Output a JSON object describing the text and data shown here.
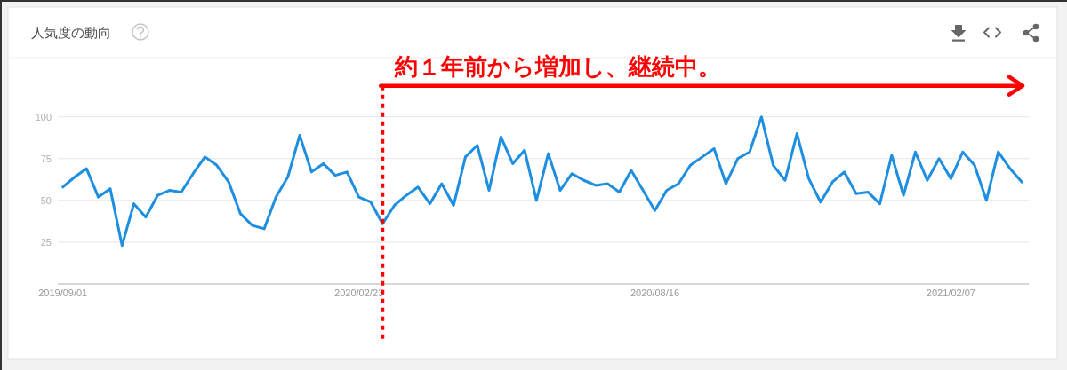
{
  "chart_data": {
    "type": "line",
    "title": "人気度の動向",
    "x": [
      "2019-09-01",
      "2019-09-08",
      "2019-09-15",
      "2019-09-22",
      "2019-09-29",
      "2019-10-06",
      "2019-10-13",
      "2019-10-20",
      "2019-10-27",
      "2019-11-03",
      "2019-11-10",
      "2019-11-17",
      "2019-11-24",
      "2019-12-01",
      "2019-12-08",
      "2019-12-15",
      "2019-12-22",
      "2019-12-29",
      "2020-01-05",
      "2020-01-12",
      "2020-01-19",
      "2020-01-26",
      "2020-02-02",
      "2020-02-09",
      "2020-02-16",
      "2020-02-23",
      "2020-03-01",
      "2020-03-08",
      "2020-03-15",
      "2020-03-22",
      "2020-03-29",
      "2020-04-05",
      "2020-04-12",
      "2020-04-19",
      "2020-04-26",
      "2020-05-03",
      "2020-05-10",
      "2020-05-17",
      "2020-05-24",
      "2020-05-31",
      "2020-06-07",
      "2020-06-14",
      "2020-06-21",
      "2020-06-28",
      "2020-07-05",
      "2020-07-12",
      "2020-07-19",
      "2020-07-26",
      "2020-08-02",
      "2020-08-09",
      "2020-08-16",
      "2020-08-23",
      "2020-08-30",
      "2020-09-06",
      "2020-09-13",
      "2020-09-20",
      "2020-09-27",
      "2020-10-04",
      "2020-10-11",
      "2020-10-18",
      "2020-10-25",
      "2020-11-01",
      "2020-11-08",
      "2020-11-15",
      "2020-11-22",
      "2020-11-29",
      "2020-12-06",
      "2020-12-13",
      "2020-12-20",
      "2020-12-27",
      "2021-01-03",
      "2021-01-10",
      "2021-01-17",
      "2021-01-24",
      "2021-01-31",
      "2021-02-07",
      "2021-02-14",
      "2021-02-21",
      "2021-02-28",
      "2021-03-07",
      "2021-03-14",
      "2021-03-21"
    ],
    "series": [
      {
        "color": "#1e8fe0",
        "values": [
          58,
          64,
          69,
          52,
          57,
          23,
          48,
          40,
          53,
          56,
          55,
          66,
          76,
          71,
          61,
          42,
          35,
          33,
          52,
          64,
          89,
          67,
          72,
          65,
          67,
          52,
          49,
          36,
          47,
          53,
          58,
          48,
          60,
          47,
          76,
          83,
          56,
          88,
          72,
          80,
          50,
          78,
          56,
          66,
          62,
          59,
          60,
          55,
          68,
          56,
          44,
          56,
          60,
          71,
          76,
          81,
          60,
          75,
          79,
          100,
          71,
          62,
          90,
          63,
          49,
          61,
          67,
          54,
          55,
          48,
          77,
          53,
          79,
          62,
          75,
          63,
          79,
          71,
          50,
          79,
          69,
          61
        ]
      }
    ],
    "xlim": [
      "2019-08-29",
      "2021-03-24"
    ],
    "xticks": [
      {
        "value": "2019-09-01",
        "label": "2019/09/01"
      },
      {
        "value": "2020-02-23",
        "label": "2020/02/23"
      },
      {
        "value": "2020-08-16",
        "label": "2020/08/16"
      },
      {
        "value": "2021-02-07",
        "label": "2021/02/07"
      }
    ],
    "ylim": [
      0,
      100
    ],
    "yticks": [
      25,
      50,
      75,
      100
    ],
    "grid": "y",
    "ref_lines": [
      {
        "axis": "x",
        "value": "2020-03-08",
        "label": "約１年前から増加し、継続中。",
        "color": "#ff0000",
        "line_style": "dotted"
      }
    ]
  }
}
